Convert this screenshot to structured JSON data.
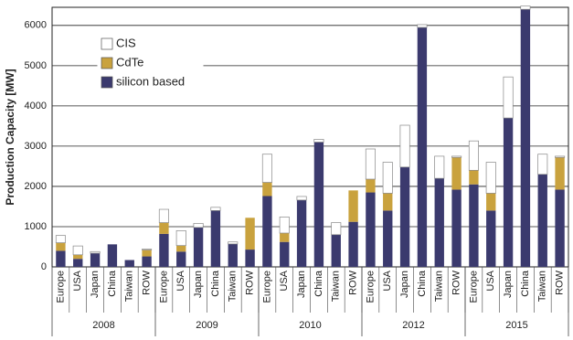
{
  "chart_data": {
    "type": "stacked-bar",
    "y_label": "Production Capacity [MW]",
    "categories": [
      "Europe",
      "USA",
      "Japan",
      "China",
      "Taiwan",
      "ROW",
      "Europe",
      "USA",
      "Japan",
      "China",
      "Taiwan",
      "ROW",
      "Europe",
      "USA",
      "Japan",
      "China",
      "Taiwan",
      "ROW",
      "Europe",
      "USA",
      "Japan",
      "China",
      "Taiwan",
      "ROW",
      "Europe",
      "USA",
      "Japan",
      "China",
      "Taiwan",
      "ROW"
    ],
    "groups": [
      "2008",
      "2009",
      "2010",
      "2012",
      "2015"
    ],
    "series": [
      {
        "name": "silicon based",
        "color": "#3b3a6e",
        "values": [
          400,
          200,
          340,
          560,
          170,
          260,
          820,
          380,
          980,
          1400,
          570,
          430,
          1760,
          620,
          1660,
          3100,
          800,
          1120,
          1850,
          1400,
          2480,
          5950,
          2200,
          1920,
          2050,
          1400,
          3700,
          6400,
          2300,
          1920
        ]
      },
      {
        "name": "CdTe",
        "color": "#c9a23e",
        "values": [
          200,
          100,
          0,
          0,
          0,
          160,
          280,
          150,
          0,
          0,
          0,
          790,
          340,
          220,
          0,
          0,
          0,
          780,
          330,
          430,
          0,
          0,
          0,
          800,
          350,
          430,
          0,
          0,
          0,
          800
        ]
      },
      {
        "name": "CIS",
        "color": "#ffffff",
        "values": [
          180,
          220,
          40,
          0,
          0,
          20,
          330,
          370,
          100,
          80,
          50,
          0,
          700,
          400,
          90,
          70,
          300,
          0,
          750,
          770,
          1040,
          70,
          550,
          30,
          730,
          770,
          1020,
          80,
          500,
          30
        ]
      }
    ],
    "ylim": [
      0,
      6450
    ],
    "yticks": [
      0,
      1000,
      2000,
      3000,
      4000,
      5000,
      6000
    ],
    "grid": true,
    "legend": "top-left"
  }
}
